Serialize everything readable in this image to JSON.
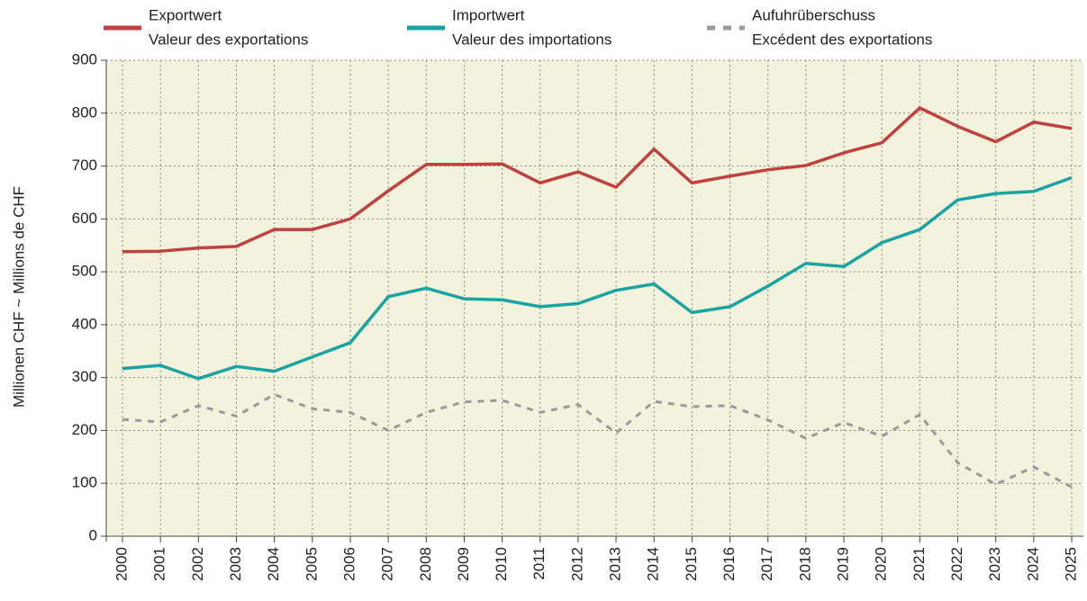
{
  "chart_data": {
    "type": "line",
    "ylabel": "Millionen CHF  ~  Millions de CHF",
    "categories": [
      "2000",
      "2001",
      "2002",
      "2003",
      "2004",
      "2005",
      "2006",
      "2007",
      "2008",
      "2009",
      "2010",
      "2011",
      "2012",
      "2013",
      "2014",
      "2015",
      "2016",
      "2017",
      "2018",
      "2019",
      "2020",
      "2021",
      "2022",
      "2023",
      "2024",
      "2025"
    ],
    "series": [
      {
        "name": [
          "Exportwert",
          "Valeur des exportations"
        ],
        "color": "#c0413f",
        "dashed": false,
        "values": [
          538,
          539,
          545,
          548,
          580,
          580,
          600,
          653,
          703,
          703,
          704,
          668,
          689,
          660,
          732,
          668,
          681,
          693,
          701,
          725,
          744,
          810,
          775,
          746,
          783,
          771
        ]
      },
      {
        "name": [
          "Importwert",
          "Valeur des importations"
        ],
        "color": "#1aa3a3",
        "dashed": false,
        "values": [
          317,
          323,
          298,
          321,
          312,
          339,
          366,
          453,
          469,
          449,
          447,
          434,
          440,
          465,
          477,
          423,
          434,
          473,
          516,
          510,
          555,
          580,
          636,
          648,
          652,
          678
        ]
      },
      {
        "name": [
          "Aufuhrüberschuss",
          "Excédent des exportations"
        ],
        "color": "#9a9a9a",
        "dashed": true,
        "values": [
          221,
          216,
          247,
          227,
          268,
          241,
          234,
          200,
          234,
          254,
          257,
          234,
          249,
          195,
          255,
          245,
          247,
          220,
          185,
          215,
          189,
          230,
          139,
          98,
          131,
          93
        ]
      }
    ],
    "ylim": [
      0,
      900
    ],
    "yticks": [
      0,
      100,
      200,
      300,
      400,
      500,
      600,
      700,
      800,
      900
    ],
    "grid": true,
    "background": "#f3f2dc"
  }
}
